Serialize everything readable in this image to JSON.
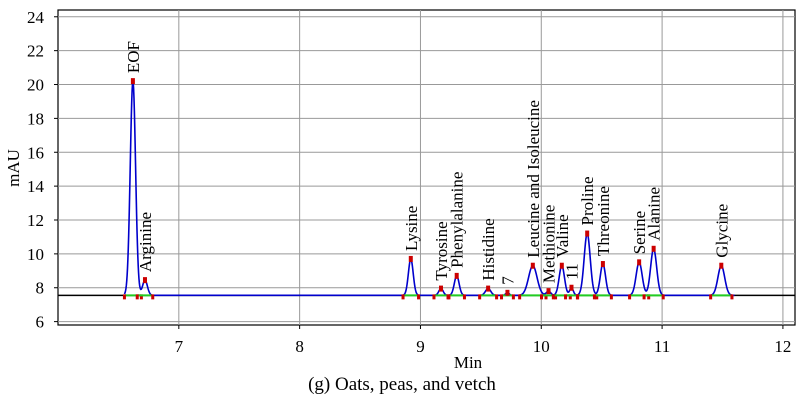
{
  "caption": "(g) Oats, peas, and vetch",
  "chart_data": {
    "type": "line",
    "xlabel": "Min",
    "ylabel": "mAU",
    "xlim": [
      6.0,
      12.1
    ],
    "ylim": [
      5.8,
      24.4
    ],
    "x_ticks": [
      7,
      8,
      9,
      10,
      11,
      12
    ],
    "y_ticks": [
      6,
      8,
      10,
      12,
      14,
      16,
      18,
      20,
      22,
      24
    ],
    "grid": true,
    "baseline_level": 7.55,
    "colors": {
      "trace": "#0000cc",
      "baseline": "#000000",
      "integration": "#22cc22",
      "marker": "#cc0000",
      "grid": "#999999"
    },
    "series": [
      {
        "peaks": [
          {
            "label": "EOF",
            "x": 6.62,
            "y": 20.2,
            "width": 0.022
          },
          {
            "label": "Arginine",
            "x": 6.72,
            "y": 8.45,
            "width": 0.02
          },
          {
            "label": "Lysine",
            "x": 8.92,
            "y": 9.7,
            "width": 0.02
          },
          {
            "label": "Tyrosine",
            "x": 9.17,
            "y": 7.95,
            "width": 0.018
          },
          {
            "label": "Phenylalanine",
            "x": 9.3,
            "y": 8.7,
            "width": 0.02
          },
          {
            "label": "Histidine",
            "x": 9.56,
            "y": 7.95,
            "width": 0.022
          },
          {
            "label": "7",
            "x": 9.72,
            "y": 7.7,
            "width": 0.015
          },
          {
            "label": "Leucine and Isoleucine",
            "x": 9.93,
            "y": 9.3,
            "width": 0.035
          },
          {
            "label": "Methionine",
            "x": 10.06,
            "y": 7.8,
            "width": 0.018
          },
          {
            "label": "Valine",
            "x": 10.17,
            "y": 9.3,
            "width": 0.022
          },
          {
            "label": "11",
            "x": 10.25,
            "y": 8.0,
            "width": 0.015
          },
          {
            "label": "Proline",
            "x": 10.38,
            "y": 11.2,
            "width": 0.025
          },
          {
            "label": "Threonine",
            "x": 10.51,
            "y": 9.4,
            "width": 0.022
          },
          {
            "label": "Serine",
            "x": 10.81,
            "y": 9.5,
            "width": 0.025
          },
          {
            "label": "Alanine",
            "x": 10.93,
            "y": 10.3,
            "width": 0.025
          },
          {
            "label": "Glycine",
            "x": 11.49,
            "y": 9.3,
            "width": 0.028
          }
        ]
      }
    ]
  }
}
